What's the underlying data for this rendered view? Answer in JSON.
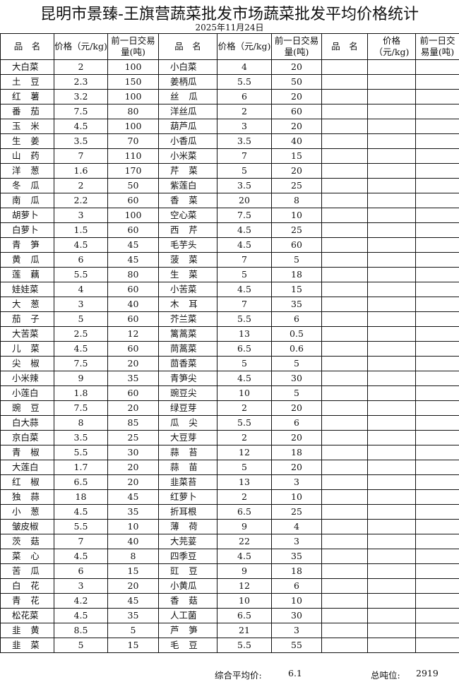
{
  "title": "昆明市景臻-王旗营蔬菜批发市场蔬菜批发平均价格统计",
  "date": "2025年11月24日",
  "headers": {
    "name": "品　名",
    "price": "价格（元/kg)",
    "volume": "前一日交易量(吨)"
  },
  "rows": [
    [
      [
        "大白菜",
        "2",
        "100"
      ],
      [
        "小白菜",
        "4",
        "20"
      ]
    ],
    [
      [
        "土豆",
        "2.3",
        "150"
      ],
      [
        "姜柄瓜",
        "5.5",
        "50"
      ]
    ],
    [
      [
        "红薯",
        "3.2",
        "100"
      ],
      [
        "丝瓜",
        "6",
        "20"
      ]
    ],
    [
      [
        "番茄",
        "7.5",
        "80"
      ],
      [
        "洋丝瓜",
        "2",
        "60"
      ]
    ],
    [
      [
        "玉米",
        "4.5",
        "100"
      ],
      [
        "葫芦瓜",
        "3",
        "20"
      ]
    ],
    [
      [
        "生姜",
        "3.5",
        "70"
      ],
      [
        "小香瓜",
        "3.5",
        "40"
      ]
    ],
    [
      [
        "山药",
        "7",
        "110"
      ],
      [
        "小米菜",
        "7",
        "15"
      ]
    ],
    [
      [
        "洋葱",
        "1.6",
        "170"
      ],
      [
        "芹菜",
        "5",
        "20"
      ]
    ],
    [
      [
        "冬瓜",
        "2",
        "50"
      ],
      [
        "紫莲白",
        "3.5",
        "25"
      ]
    ],
    [
      [
        "南瓜",
        "2.2",
        "60"
      ],
      [
        "香菜",
        "20",
        "8"
      ]
    ],
    [
      [
        "胡萝卜",
        "3",
        "100"
      ],
      [
        "空心菜",
        "7.5",
        "10"
      ]
    ],
    [
      [
        "白萝卜",
        "1.5",
        "60"
      ],
      [
        "西芹",
        "4.5",
        "25"
      ]
    ],
    [
      [
        "青笋",
        "4.5",
        "45"
      ],
      [
        "毛芋头",
        "4.5",
        "60"
      ]
    ],
    [
      [
        "黄瓜",
        "6",
        "45"
      ],
      [
        "菠菜",
        "7",
        "5"
      ]
    ],
    [
      [
        "莲藕",
        "5.5",
        "80"
      ],
      [
        "生菜",
        "5",
        "18"
      ]
    ],
    [
      [
        "娃娃菜",
        "4",
        "60"
      ],
      [
        "小苦菜",
        "4.5",
        "15"
      ]
    ],
    [
      [
        "大葱",
        "3",
        "40"
      ],
      [
        "木耳",
        "7",
        "35"
      ]
    ],
    [
      [
        "茄子",
        "5",
        "60"
      ],
      [
        "芥兰菜",
        "5.5",
        "6"
      ]
    ],
    [
      [
        "大苦菜",
        "2.5",
        "12"
      ],
      [
        "篱蒿菜",
        "13",
        "0.5"
      ]
    ],
    [
      [
        "儿菜",
        "4.5",
        "60"
      ],
      [
        "茼蒿菜",
        "6.5",
        "0.6"
      ]
    ],
    [
      [
        "尖椒",
        "7.5",
        "20"
      ],
      [
        "茴香菜",
        "5",
        "5"
      ]
    ],
    [
      [
        "小米辣",
        "9",
        "35"
      ],
      [
        "青笋尖",
        "4.5",
        "30"
      ]
    ],
    [
      [
        "小莲白",
        "1.8",
        "60"
      ],
      [
        "豌豆尖",
        "10",
        "5"
      ]
    ],
    [
      [
        "豌豆",
        "7.5",
        "20"
      ],
      [
        "绿豆芽",
        "2",
        "20"
      ]
    ],
    [
      [
        "白大蒜",
        "8",
        "85"
      ],
      [
        "瓜尖",
        "5.5",
        "6"
      ]
    ],
    [
      [
        "京白菜",
        "3.5",
        "25"
      ],
      [
        "大豆芽",
        "2",
        "20"
      ]
    ],
    [
      [
        "青椒",
        "5.5",
        "30"
      ],
      [
        "蒜苔",
        "12",
        "18"
      ]
    ],
    [
      [
        "大莲白",
        "1.7",
        "20"
      ],
      [
        "蒜苗",
        "5",
        "20"
      ]
    ],
    [
      [
        "红椒",
        "6.5",
        "20"
      ],
      [
        "韭菜苔",
        "13",
        "3"
      ]
    ],
    [
      [
        "独蒜",
        "18",
        "45"
      ],
      [
        "红萝卜",
        "2",
        "10"
      ]
    ],
    [
      [
        "小葱",
        "4.5",
        "35"
      ],
      [
        "折耳根",
        "6.5",
        "25"
      ]
    ],
    [
      [
        "皱皮椒",
        "5.5",
        "10"
      ],
      [
        "薄荷",
        "9",
        "4"
      ]
    ],
    [
      [
        "茨菇",
        "7",
        "40"
      ],
      [
        "大芫荽",
        "22",
        "3"
      ]
    ],
    [
      [
        "菜心",
        "4.5",
        "8"
      ],
      [
        "四季豆",
        "4.5",
        "35"
      ]
    ],
    [
      [
        "苦瓜",
        "6",
        "15"
      ],
      [
        "豇豆",
        "9",
        "18"
      ]
    ],
    [
      [
        "白花",
        "3",
        "20"
      ],
      [
        "小黄瓜",
        "12",
        "6"
      ]
    ],
    [
      [
        "青花",
        "4.2",
        "45"
      ],
      [
        "香菇",
        "10",
        "10"
      ]
    ],
    [
      [
        "松花菜",
        "4.5",
        "35"
      ],
      [
        "人工菌",
        "6.5",
        "30"
      ]
    ],
    [
      [
        "韭黄",
        "8.5",
        "5"
      ],
      [
        "芦笋",
        "21",
        "3"
      ]
    ],
    [
      [
        "韭菜",
        "5",
        "15"
      ],
      [
        "毛豆",
        "5.5",
        "55"
      ]
    ]
  ],
  "footer": {
    "avg_label": "综合平均价:",
    "avg_value": "6.1",
    "total_label": "总吨位:",
    "total_value": "2919"
  }
}
